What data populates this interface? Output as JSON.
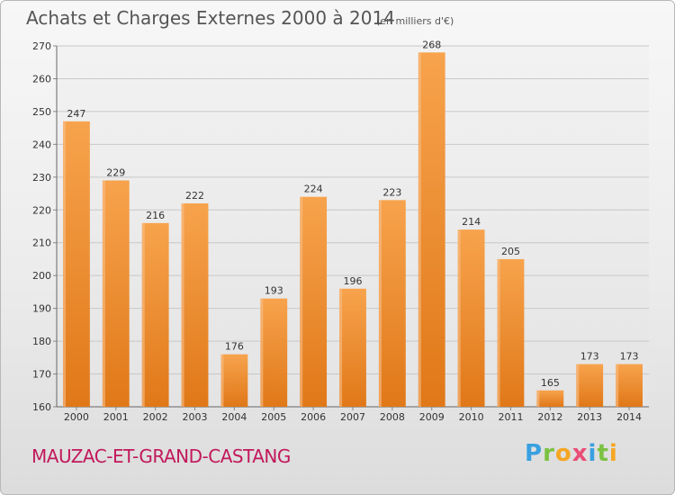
{
  "chart_data": {
    "type": "bar",
    "title": "Achats et Charges Externes 2000 à 2014",
    "subtitle": "(en milliers d'€)",
    "categories": [
      "2000",
      "2001",
      "2002",
      "2003",
      "2004",
      "2005",
      "2006",
      "2007",
      "2008",
      "2009",
      "2010",
      "2011",
      "2012",
      "2013",
      "2014"
    ],
    "values": [
      247,
      229,
      216,
      222,
      176,
      193,
      224,
      196,
      223,
      268,
      214,
      205,
      165,
      173,
      173
    ],
    "ylim": [
      160,
      270
    ],
    "yticks": [
      160,
      170,
      180,
      190,
      200,
      210,
      220,
      230,
      240,
      250,
      260,
      270
    ],
    "grid": true,
    "bar_color": "#f08a24",
    "bar_highlight": "#f7a95a"
  },
  "footer": {
    "place": "MAUZAC-ET-GRAND-CASTANG",
    "place_color": "#c2185b"
  },
  "logo": {
    "letters": [
      "P",
      "r",
      "o",
      "x",
      "i",
      "t",
      "i"
    ],
    "colors": [
      "#3aa0e0",
      "#7cc242",
      "#f5a623",
      "#e94e77",
      "#3aa0e0",
      "#7cc242",
      "#f5a623"
    ]
  }
}
